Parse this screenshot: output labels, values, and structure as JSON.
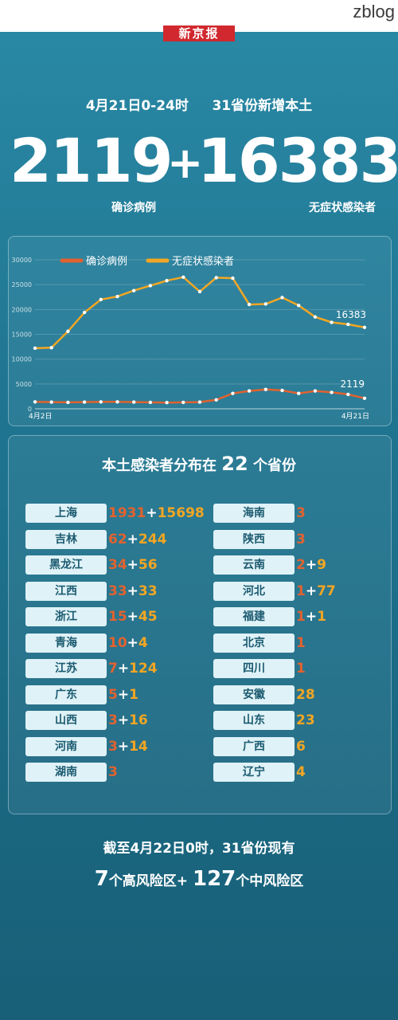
{
  "watermark": "zblog",
  "brand": "新京报",
  "headline": {
    "date_range": "4月21日0-24时",
    "scope": "31省份新增本土"
  },
  "totals": {
    "confirmed": "2119",
    "plus": "+",
    "asymptomatic": "16383",
    "confirmed_label": "确诊病例",
    "asymptomatic_label": "无症状感染者"
  },
  "colors": {
    "confirmed": "#e2622f",
    "asymptomatic": "#f2a623",
    "bg": "#1f7591"
  },
  "chart_data": {
    "type": "line",
    "legend": [
      "确诊病例",
      "无症状感染者"
    ],
    "legend_position": "top",
    "x_labels": [
      "4月2日",
      "4月21日"
    ],
    "ylim": [
      0,
      30000
    ],
    "yticks": [
      0,
      5000,
      10000,
      15000,
      20000,
      25000,
      30000
    ],
    "grid": true,
    "series": [
      {
        "name": "确诊病例",
        "values": [
          1400,
          1350,
          1300,
          1350,
          1400,
          1400,
          1350,
          1300,
          1250,
          1300,
          1350,
          1800,
          3100,
          3600,
          3900,
          3700,
          3100,
          3600,
          3300,
          2900,
          2119
        ]
      },
      {
        "name": "无症状感染者",
        "values": [
          12200,
          12300,
          15600,
          19400,
          22000,
          22600,
          23800,
          24800,
          25800,
          26500,
          23600,
          26400,
          26300,
          21000,
          21100,
          22400,
          20800,
          18500,
          17400,
          17000,
          16383
        ]
      }
    ],
    "end_labels": {
      "confirmed": "2119",
      "asymptomatic": "16383"
    }
  },
  "list": {
    "title_pre": "本土感染者分布在",
    "count": "22",
    "title_post": "个省份",
    "left": [
      {
        "name": "上海",
        "confirmed": "1931",
        "asymptomatic": "15698"
      },
      {
        "name": "吉林",
        "confirmed": "62",
        "asymptomatic": "244"
      },
      {
        "name": "黑龙江",
        "confirmed": "34",
        "asymptomatic": "56"
      },
      {
        "name": "江西",
        "confirmed": "33",
        "asymptomatic": "33"
      },
      {
        "name": "浙江",
        "confirmed": "15",
        "asymptomatic": "45"
      },
      {
        "name": "青海",
        "confirmed": "10",
        "asymptomatic": "4"
      },
      {
        "name": "江苏",
        "confirmed": "7",
        "asymptomatic": "124"
      },
      {
        "name": "广东",
        "confirmed": "5",
        "asymptomatic": "1"
      },
      {
        "name": "山西",
        "confirmed": "3",
        "asymptomatic": "16"
      },
      {
        "name": "河南",
        "confirmed": "3",
        "asymptomatic": "14"
      },
      {
        "name": "湖南",
        "confirmed": "3",
        "asymptomatic": ""
      }
    ],
    "right": [
      {
        "name": "海南",
        "confirmed": "3",
        "asymptomatic": ""
      },
      {
        "name": "陕西",
        "confirmed": "3",
        "asymptomatic": ""
      },
      {
        "name": "云南",
        "confirmed": "2",
        "asymptomatic": "9"
      },
      {
        "name": "河北",
        "confirmed": "1",
        "asymptomatic": "77"
      },
      {
        "name": "福建",
        "confirmed": "1",
        "asymptomatic": "1"
      },
      {
        "name": "北京",
        "confirmed": "1",
        "asymptomatic": ""
      },
      {
        "name": "四川",
        "confirmed": "1",
        "asymptomatic": ""
      },
      {
        "name": "安徽",
        "confirmed": "",
        "asymptomatic": "28"
      },
      {
        "name": "山东",
        "confirmed": "",
        "asymptomatic": "23"
      },
      {
        "name": "广西",
        "confirmed": "",
        "asymptomatic": "6"
      },
      {
        "name": "辽宁",
        "confirmed": "",
        "asymptomatic": "4"
      }
    ]
  },
  "footer": {
    "line1": "截至4月22日0时，31省份现有",
    "high_count": "7",
    "high_label": "个高风险区+",
    "mid_count": "127",
    "mid_label": "个中风险区"
  }
}
